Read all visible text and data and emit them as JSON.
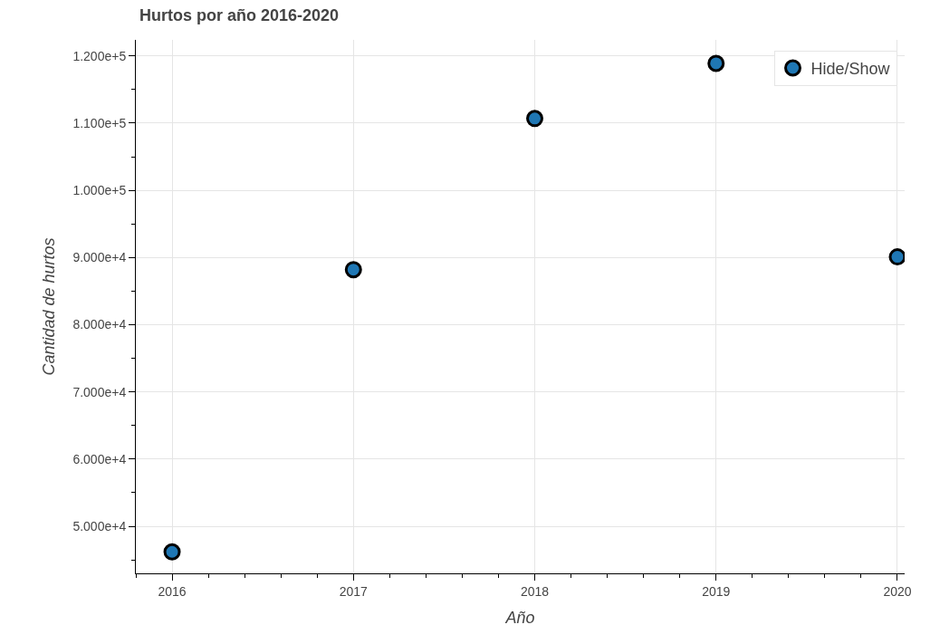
{
  "chart_data": {
    "type": "scatter",
    "title": "Hurtos por año 2016-2020",
    "xlabel": "Año",
    "ylabel": "Cantidad de hurtos",
    "x": [
      2016,
      2017,
      2018,
      2019,
      2020
    ],
    "series": [
      {
        "name": "Hide/Show",
        "color": "#1f77b4",
        "values": [
          46200,
          88200,
          110700,
          118900,
          90100
        ]
      }
    ],
    "xlim": [
      2015.8,
      2020.04
    ],
    "xticks": [
      2016,
      2017,
      2018,
      2019,
      2020
    ],
    "ylim": [
      43000,
      122400
    ],
    "yticks": [
      {
        "value": 50000,
        "label": "5.000e+4"
      },
      {
        "value": 60000,
        "label": "6.000e+4"
      },
      {
        "value": 70000,
        "label": "7.000e+4"
      },
      {
        "value": 80000,
        "label": "8.000e+4"
      },
      {
        "value": 90000,
        "label": "9.000e+4"
      },
      {
        "value": 100000,
        "label": "1.000e+5"
      },
      {
        "value": 110000,
        "label": "1.100e+5"
      },
      {
        "value": 120000,
        "label": "1.200e+5"
      }
    ],
    "grid": true,
    "legend": "top right",
    "marker": "circle"
  }
}
